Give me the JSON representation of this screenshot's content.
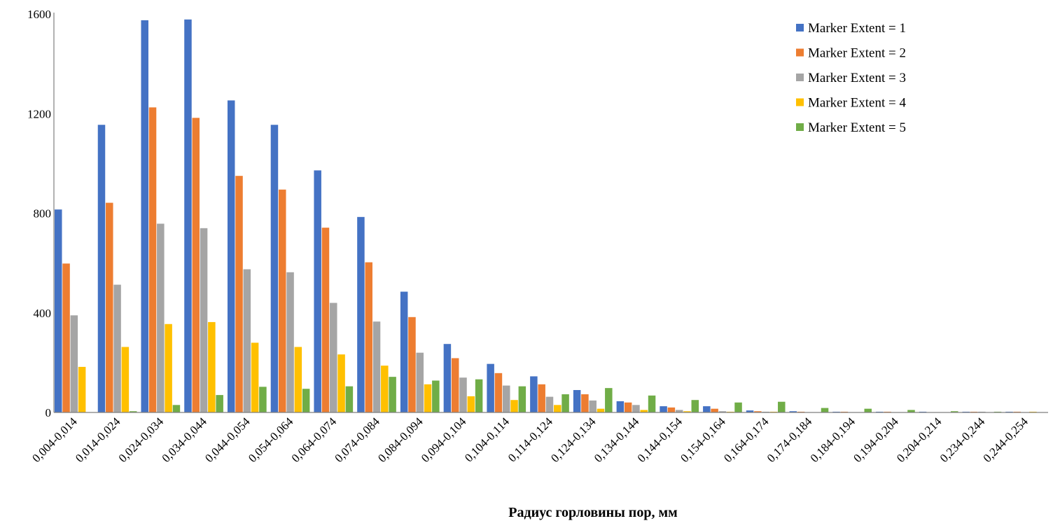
{
  "chart_data": {
    "type": "bar",
    "title": "",
    "xlabel": "Радиус горловины пор, мм",
    "ylabel": "",
    "ylim": [
      0,
      1600
    ],
    "yticks": [
      0,
      400,
      800,
      1200,
      1600
    ],
    "grid": false,
    "legend_position": "top-right",
    "categories": [
      "0,004-0,014",
      "0,014-0,024",
      "0,024-0,034",
      "0,034-0,044",
      "0,044-0,054",
      "0,054-0,064",
      "0,064-0,074",
      "0,074-0,084",
      "0,084-0,094",
      "0,094-0,104",
      "0,104-0,114",
      "0,114-0,124",
      "0,124-0,134",
      "0,134-0,144",
      "0,144-0,154",
      "0,154-0,164",
      "0,164-0,174",
      "0,174-0,184",
      "0,184-0,194",
      "0,194-0,204",
      "0,204-0,214",
      "0,234-0,244",
      "0,244-0,254"
    ],
    "series": [
      {
        "name": "Marker Extent = 1",
        "color": "#4472C4",
        "values": [
          815,
          1155,
          1575,
          1578,
          1253,
          1155,
          972,
          785,
          485,
          275,
          195,
          145,
          90,
          45,
          25,
          25,
          8,
          5,
          3,
          3,
          3,
          3,
          3
        ]
      },
      {
        "name": "Marker Extent = 2",
        "color": "#ED7D31",
        "values": [
          598,
          842,
          1225,
          1183,
          950,
          895,
          742,
          603,
          383,
          218,
          158,
          113,
          73,
          40,
          20,
          15,
          5,
          3,
          3,
          3,
          0,
          3,
          3
        ]
      },
      {
        "name": "Marker Extent = 3",
        "color": "#A5A5A5",
        "values": [
          390,
          513,
          758,
          740,
          575,
          563,
          440,
          365,
          240,
          140,
          108,
          63,
          48,
          30,
          10,
          5,
          3,
          0,
          0,
          0,
          0,
          3,
          0
        ]
      },
      {
        "name": "Marker Extent = 4",
        "color": "#FFC000",
        "values": [
          183,
          263,
          355,
          363,
          280,
          263,
          233,
          188,
          113,
          65,
          50,
          30,
          15,
          10,
          5,
          3,
          3,
          0,
          0,
          0,
          0,
          0,
          3
        ]
      },
      {
        "name": "Marker Extent = 5",
        "color": "#70AD47",
        "values": [
          0,
          5,
          30,
          70,
          103,
          95,
          105,
          143,
          128,
          133,
          105,
          73,
          98,
          68,
          50,
          40,
          43,
          18,
          15,
          10,
          5,
          3,
          0
        ]
      }
    ]
  }
}
